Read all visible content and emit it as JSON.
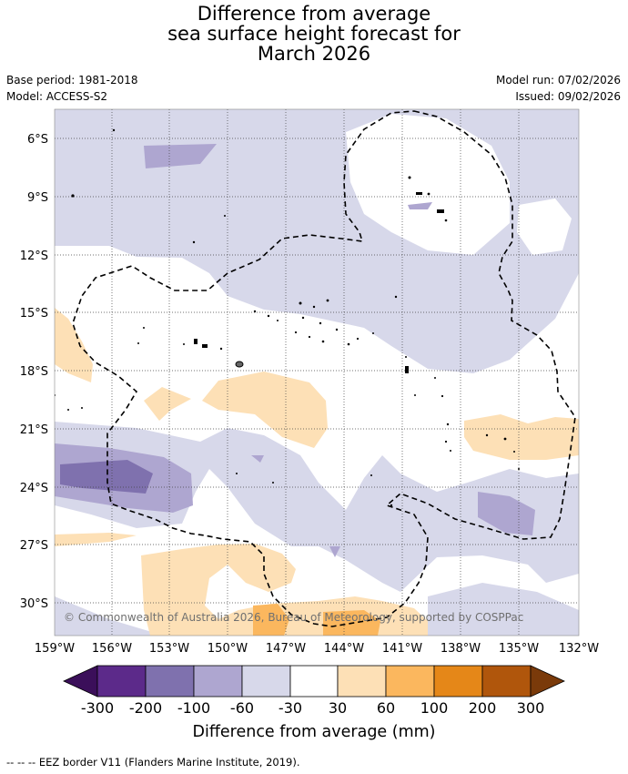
{
  "title": {
    "line1": "Difference from average",
    "line2": "sea surface height forecast for",
    "line3": "March 2026"
  },
  "meta": {
    "base_period": "Base period: 1981-2018",
    "model": "Model: ACCESS-S2",
    "model_run": "Model run: 07/02/2026",
    "issued": "Issued: 09/02/2026"
  },
  "map": {
    "copyright": "© Commonwealth of Australia 2026, Bureau of Meteorology, supported by COSPPac",
    "lat_labels": [
      "6°S",
      "9°S",
      "12°S",
      "15°S",
      "18°S",
      "21°S",
      "24°S",
      "27°S",
      "30°S"
    ],
    "lon_labels": [
      "159°W",
      "156°W",
      "153°W",
      "150°W",
      "147°W",
      "144°W",
      "141°W",
      "138°W",
      "135°W",
      "132°W"
    ]
  },
  "legend": {
    "title": "Difference from average (mm)",
    "tick_labels": [
      "-300",
      "-200",
      "-100",
      "-60",
      "-30",
      "30",
      "60",
      "100",
      "200",
      "300"
    ],
    "colors": {
      "min_extend": "#3b0f5a",
      "bin1": "#5c2a8a",
      "bin2": "#7f71ae",
      "bin3": "#aea6d0",
      "bin4": "#d7d8ea",
      "bin5": "#ffffff",
      "bin6": "#fde0b6",
      "bin7": "#fbb75e",
      "bin8": "#e58718",
      "bin9": "#b0560c",
      "max_extend": "#7a3a0a"
    }
  },
  "footnote": "-- -- -- EEZ border V11 (Flanders Marine Institute, 2019)."
}
